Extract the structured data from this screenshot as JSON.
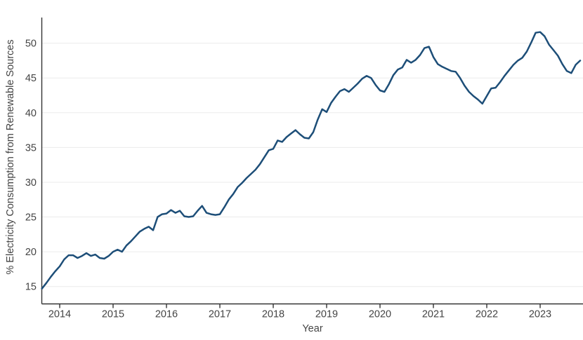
{
  "chart_data": {
    "type": "line",
    "title": "",
    "xlabel": "Year",
    "ylabel": "% Electricity Consumption from Renewable Sources",
    "x_tick_labels": [
      "2014",
      "2015",
      "2016",
      "2017",
      "2018",
      "2019",
      "2020",
      "2021",
      "2022",
      "2023"
    ],
    "x_tick_values": [
      2014,
      2015,
      2016,
      2017,
      2018,
      2019,
      2020,
      2021,
      2022,
      2023
    ],
    "y_tick_labels": [
      "15",
      "20",
      "25",
      "30",
      "35",
      "40",
      "45",
      "50"
    ],
    "y_tick_values": [
      15,
      20,
      25,
      30,
      35,
      40,
      45,
      50
    ],
    "xlim": [
      2013.664,
      2023.803
    ],
    "ylim": [
      12.5,
      54.7
    ],
    "grid": "horizontal-only",
    "legend": "none",
    "colors": {
      "line": "#1d4e78",
      "grid": "#ebebeb",
      "axis": "#333333",
      "tick_text": "#444444"
    },
    "series": [
      {
        "name": "% electricity consumption from renewable sources",
        "start": "2013-09",
        "frequency": "monthly",
        "values": [
          14.7,
          15.5,
          16.4,
          17.2,
          17.9,
          18.9,
          19.5,
          19.5,
          19.1,
          19.4,
          19.8,
          19.4,
          19.6,
          19.1,
          19.0,
          19.4,
          20.0,
          20.3,
          20.0,
          20.9,
          21.5,
          22.2,
          22.9,
          23.3,
          23.6,
          23.1,
          25.0,
          25.4,
          25.5,
          26.0,
          25.6,
          25.9,
          25.1,
          25.0,
          25.1,
          25.9,
          26.6,
          25.6,
          25.4,
          25.3,
          25.4,
          26.4,
          27.5,
          28.3,
          29.3,
          29.9,
          30.6,
          31.2,
          31.8,
          32.6,
          33.6,
          34.6,
          34.8,
          36.0,
          35.8,
          36.5,
          37.0,
          37.5,
          36.9,
          36.4,
          36.3,
          37.2,
          39.0,
          40.5,
          40.1,
          41.4,
          42.3,
          43.1,
          43.4,
          43.0,
          43.6,
          44.2,
          44.9,
          45.3,
          45.0,
          44.0,
          43.2,
          43.0,
          44.1,
          45.4,
          46.2,
          46.5,
          47.6,
          47.2,
          47.6,
          48.3,
          49.3,
          49.5,
          48.0,
          47.0,
          46.6,
          46.3,
          46.0,
          45.9,
          45.0,
          43.9,
          43.0,
          42.4,
          41.9,
          41.3,
          42.4,
          43.5,
          43.6,
          44.4,
          45.3,
          46.1,
          46.9,
          47.5,
          47.9,
          48.8,
          50.1,
          51.5,
          51.6,
          51.0,
          49.8,
          49.0,
          48.2,
          47.0,
          46.0,
          45.7,
          46.9,
          47.5
        ]
      }
    ]
  }
}
